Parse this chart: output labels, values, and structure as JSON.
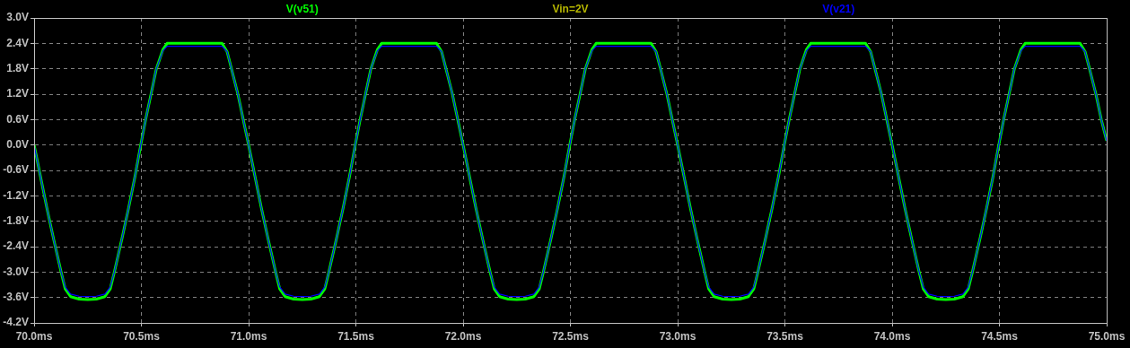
{
  "chart_data": {
    "type": "line",
    "x": [
      70,
      70.03,
      70.06,
      70.09,
      70.126,
      70.145,
      70.17,
      70.21,
      70.25,
      70.29,
      70.33,
      70.355,
      70.374,
      70.41,
      70.44,
      70.47,
      70.497,
      70.52,
      70.545,
      70.57,
      70.6,
      70.62,
      70.876,
      70.9,
      70.92,
      70.95,
      70.975,
      71,
      71.03,
      71.06,
      71.09,
      71.126,
      71.145,
      71.17,
      71.21,
      71.25,
      71.29,
      71.33,
      71.355,
      71.374,
      71.41,
      71.44,
      71.47,
      71.497,
      71.52,
      71.545,
      71.57,
      71.6,
      71.62,
      71.876,
      71.9,
      71.92,
      71.95,
      71.975,
      72,
      72.03,
      72.06,
      72.09,
      72.126,
      72.145,
      72.17,
      72.21,
      72.25,
      72.29,
      72.33,
      72.355,
      72.374,
      72.41,
      72.44,
      72.47,
      72.497,
      72.52,
      72.545,
      72.57,
      72.6,
      72.62,
      72.876,
      72.9,
      72.92,
      72.95,
      72.975,
      73,
      73.03,
      73.06,
      73.09,
      73.126,
      73.145,
      73.17,
      73.21,
      73.25,
      73.29,
      73.33,
      73.355,
      73.374,
      73.41,
      73.44,
      73.47,
      73.497,
      73.52,
      73.545,
      73.57,
      73.6,
      73.62,
      73.876,
      73.9,
      73.92,
      73.95,
      73.975,
      74,
      74.03,
      74.06,
      74.09,
      74.126,
      74.145,
      74.17,
      74.21,
      74.25,
      74.29,
      74.33,
      74.355,
      74.374,
      74.41,
      74.44,
      74.47,
      74.497,
      74.52,
      74.545,
      74.57,
      74.6,
      74.62,
      74.876,
      74.9,
      74.92,
      74.95,
      74.975,
      75
    ],
    "series": [
      {
        "name": "V(v51)",
        "color": "#00ff00",
        "values": [
          0,
          -0.75,
          -1.5,
          -2.2,
          -3.0,
          -3.4,
          -3.58,
          -3.64,
          -3.65,
          -3.64,
          -3.58,
          -3.4,
          -3.0,
          -2.2,
          -1.5,
          -0.75,
          0,
          0.6,
          1.2,
          1.8,
          2.25,
          2.4,
          2.4,
          2.2,
          1.8,
          1.2,
          0.6,
          0,
          -0.75,
          -1.5,
          -2.2,
          -3.0,
          -3.4,
          -3.58,
          -3.64,
          -3.65,
          -3.64,
          -3.58,
          -3.4,
          -3.0,
          -2.2,
          -1.5,
          -0.75,
          0,
          0.6,
          1.2,
          1.8,
          2.25,
          2.4,
          2.4,
          2.2,
          1.8,
          1.2,
          0.6,
          0,
          -0.75,
          -1.5,
          -2.2,
          -3.0,
          -3.4,
          -3.58,
          -3.64,
          -3.65,
          -3.64,
          -3.58,
          -3.4,
          -3.0,
          -2.2,
          -1.5,
          -0.75,
          0,
          0.6,
          1.2,
          1.8,
          2.25,
          2.4,
          2.4,
          2.2,
          1.8,
          1.2,
          0.6,
          0,
          -0.75,
          -1.5,
          -2.2,
          -3.0,
          -3.4,
          -3.58,
          -3.64,
          -3.65,
          -3.64,
          -3.58,
          -3.4,
          -3.0,
          -2.2,
          -1.5,
          -0.75,
          0,
          0.6,
          1.2,
          1.8,
          2.25,
          2.4,
          2.4,
          2.2,
          1.8,
          1.2,
          0.6,
          0,
          -0.75,
          -1.5,
          -2.2,
          -3.0,
          -3.4,
          -3.58,
          -3.64,
          -3.65,
          -3.64,
          -3.58,
          -3.4,
          -3.0,
          -2.2,
          -1.5,
          -0.75,
          0,
          0.6,
          1.2,
          1.8,
          2.25,
          2.4,
          2.4,
          2.2,
          1.8,
          1.2,
          0.6,
          0.1
        ]
      },
      {
        "name": "V(v21)",
        "color": "#0000ff",
        "values": [
          0,
          -0.75,
          -1.5,
          -2.2,
          -3.0,
          -3.35,
          -3.52,
          -3.57,
          -3.58,
          -3.57,
          -3.52,
          -3.35,
          -3.0,
          -2.2,
          -1.5,
          -0.75,
          0,
          0.6,
          1.2,
          1.8,
          2.22,
          2.33,
          2.33,
          2.2,
          1.8,
          1.2,
          0.6,
          0,
          -0.75,
          -1.5,
          -2.2,
          -3.0,
          -3.35,
          -3.52,
          -3.57,
          -3.58,
          -3.57,
          -3.52,
          -3.35,
          -3.0,
          -2.2,
          -1.5,
          -0.75,
          0,
          0.6,
          1.2,
          1.8,
          2.22,
          2.33,
          2.33,
          2.2,
          1.8,
          1.2,
          0.6,
          0,
          -0.75,
          -1.5,
          -2.2,
          -3.0,
          -3.35,
          -3.52,
          -3.57,
          -3.58,
          -3.57,
          -3.52,
          -3.35,
          -3.0,
          -2.2,
          -1.5,
          -0.75,
          0,
          0.6,
          1.2,
          1.8,
          2.22,
          2.33,
          2.33,
          2.2,
          1.8,
          1.2,
          0.6,
          0,
          -0.75,
          -1.5,
          -2.2,
          -3.0,
          -3.35,
          -3.52,
          -3.57,
          -3.58,
          -3.57,
          -3.52,
          -3.35,
          -3.0,
          -2.2,
          -1.5,
          -0.75,
          0,
          0.6,
          1.2,
          1.8,
          2.22,
          2.33,
          2.33,
          2.2,
          1.8,
          1.2,
          0.6,
          0,
          -0.75,
          -1.5,
          -2.2,
          -3.0,
          -3.35,
          -3.52,
          -3.57,
          -3.58,
          -3.57,
          -3.52,
          -3.35,
          -3.0,
          -2.2,
          -1.5,
          -0.75,
          0,
          0.6,
          1.2,
          1.8,
          2.22,
          2.33,
          2.33,
          2.2,
          1.8,
          1.2,
          0.6,
          0.1
        ]
      }
    ],
    "annotations": [
      "Vin=2V"
    ],
    "xlim": [
      70,
      75
    ],
    "xticks": [
      {
        "value": 70,
        "label": "70.0ms"
      },
      {
        "value": 70.5,
        "label": "70.5ms"
      },
      {
        "value": 71,
        "label": "71.0ms"
      },
      {
        "value": 71.5,
        "label": "71.5ms"
      },
      {
        "value": 72,
        "label": "72.0ms"
      },
      {
        "value": 72.5,
        "label": "72.5ms"
      },
      {
        "value": 73,
        "label": "73.0ms"
      },
      {
        "value": 73.5,
        "label": "73.5ms"
      },
      {
        "value": 74,
        "label": "74.0ms"
      },
      {
        "value": 74.5,
        "label": "74.5ms"
      },
      {
        "value": 75,
        "label": "75.0ms"
      }
    ],
    "ylim": [
      -4.2,
      3.0
    ],
    "yticks": [
      {
        "value": -4.2,
        "label": "-4.2V"
      },
      {
        "value": -3.6,
        "label": "-3.6V"
      },
      {
        "value": -3.0,
        "label": "-3.0V"
      },
      {
        "value": -2.4,
        "label": "-2.4V"
      },
      {
        "value": -1.8,
        "label": "-1.8V"
      },
      {
        "value": -1.2,
        "label": "-1.2V"
      },
      {
        "value": -0.6,
        "label": "-0.6V"
      },
      {
        "value": 0,
        "label": "0.0V"
      },
      {
        "value": 0.6,
        "label": "0.6V"
      },
      {
        "value": 1.2,
        "label": "1.2V"
      },
      {
        "value": 1.8,
        "label": "1.8V"
      },
      {
        "value": 2.4,
        "label": "2.4V"
      },
      {
        "value": 3.0,
        "label": "3.0V"
      }
    ],
    "grid": true,
    "legend": "top"
  }
}
